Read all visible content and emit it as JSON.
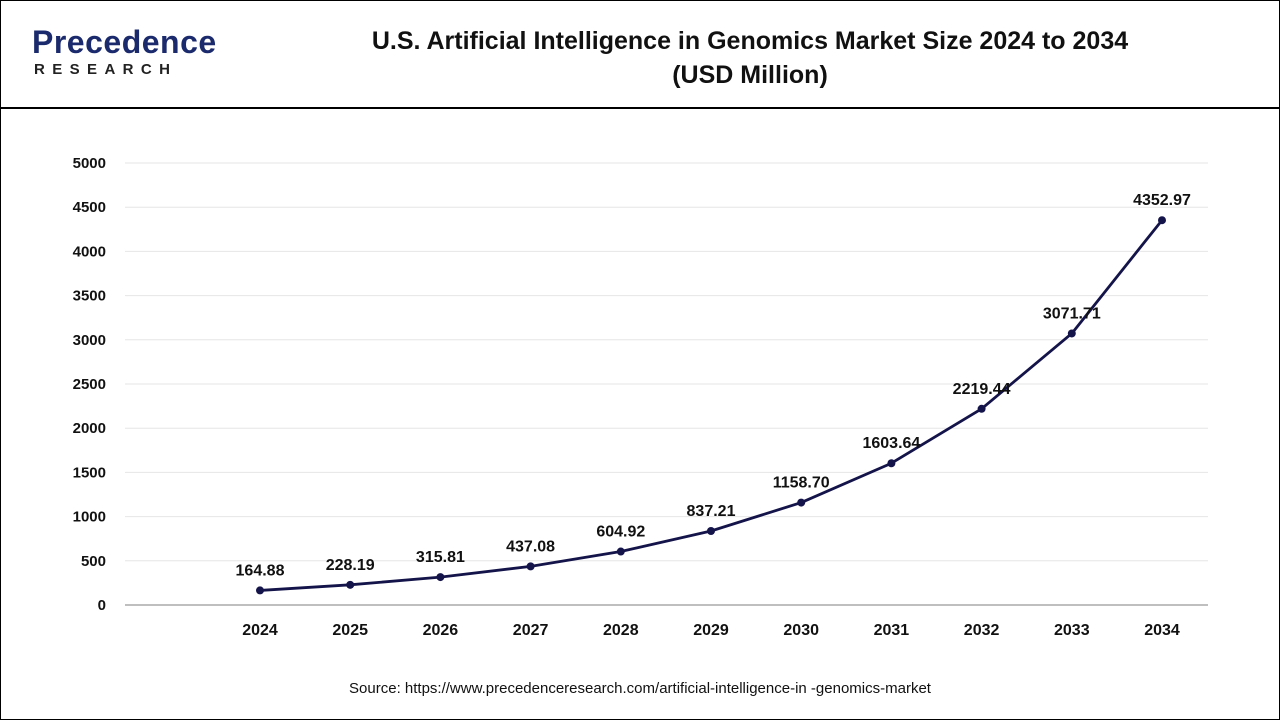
{
  "header": {
    "logo_word": "Precedence",
    "logo_sub": "RESEARCH",
    "title_line1": "U.S. Artificial Intelligence in Genomics Market Size 2024 to 2034",
    "title_line2": "(USD Million)"
  },
  "source": "Source: https://www.precedenceresearch.com/artificial-intelligence-in -genomics-market",
  "colors": {
    "line": "#14144a",
    "grid": "#e6e6e6",
    "accent": "#1a2a6c"
  },
  "chart_data": {
    "type": "line",
    "title": "U.S. Artificial Intelligence in Genomics Market Size 2024 to 2034 (USD Million)",
    "categories": [
      "2024",
      "2025",
      "2026",
      "2027",
      "2028",
      "2029",
      "2030",
      "2031",
      "2032",
      "2033",
      "2034"
    ],
    "series": [
      {
        "values": [
          164.88,
          228.19,
          315.81,
          437.08,
          604.92,
          837.21,
          1158.7,
          1603.64,
          2219.44,
          3071.71,
          4352.97
        ],
        "labels": [
          "164.88",
          "228.19",
          "315.81",
          "437.08",
          "604.92",
          "837.21",
          "1158.70",
          "1603.64",
          "2219.44",
          "3071.71",
          "4352.97"
        ]
      }
    ],
    "ylim": [
      0,
      5000
    ],
    "yticks": [
      0,
      500,
      1000,
      1500,
      2000,
      2500,
      3000,
      3500,
      4000,
      4500,
      5000
    ],
    "grid": true,
    "xlabel": "",
    "ylabel": ""
  }
}
